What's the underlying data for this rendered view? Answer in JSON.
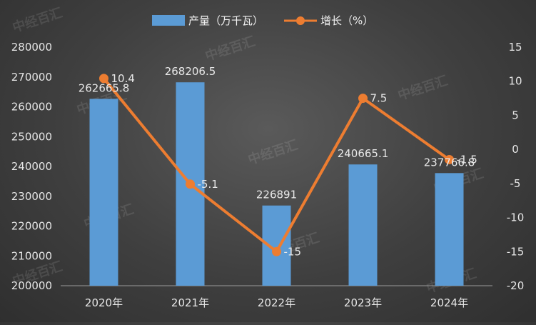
{
  "chart_data": {
    "type": "bar",
    "categories": [
      "2020年",
      "2021年",
      "2022年",
      "2023年",
      "2024年"
    ],
    "series": [
      {
        "name": "产量（万千瓦）",
        "chart_type": "bar",
        "axis": "left",
        "values": [
          262665.8,
          268206.5,
          226891,
          240665.1,
          237766.8
        ],
        "labels": [
          "262665.8",
          "268206.5",
          "226891",
          "240665.1",
          "237766.8"
        ],
        "color": "#5b9bd5"
      },
      {
        "name": "增长（%）",
        "chart_type": "line",
        "axis": "right",
        "values": [
          10.4,
          -5.1,
          -15,
          7.5,
          -1.5
        ],
        "labels": [
          "10.4",
          "-5.1",
          "-15",
          "7.5",
          "-1.5"
        ],
        "color": "#ed7d31"
      }
    ],
    "y_left": {
      "ylim": [
        200000,
        280000
      ],
      "ticks": [
        "200000",
        "210000",
        "220000",
        "230000",
        "240000",
        "250000",
        "260000",
        "270000",
        "280000"
      ]
    },
    "y_right": {
      "ylim": [
        -20,
        15
      ],
      "ticks": [
        "-20",
        "-15",
        "-10",
        "-5",
        "0",
        "5",
        "10",
        "15"
      ]
    },
    "legend_position": "top",
    "grid": false,
    "watermark": "中经百汇"
  }
}
